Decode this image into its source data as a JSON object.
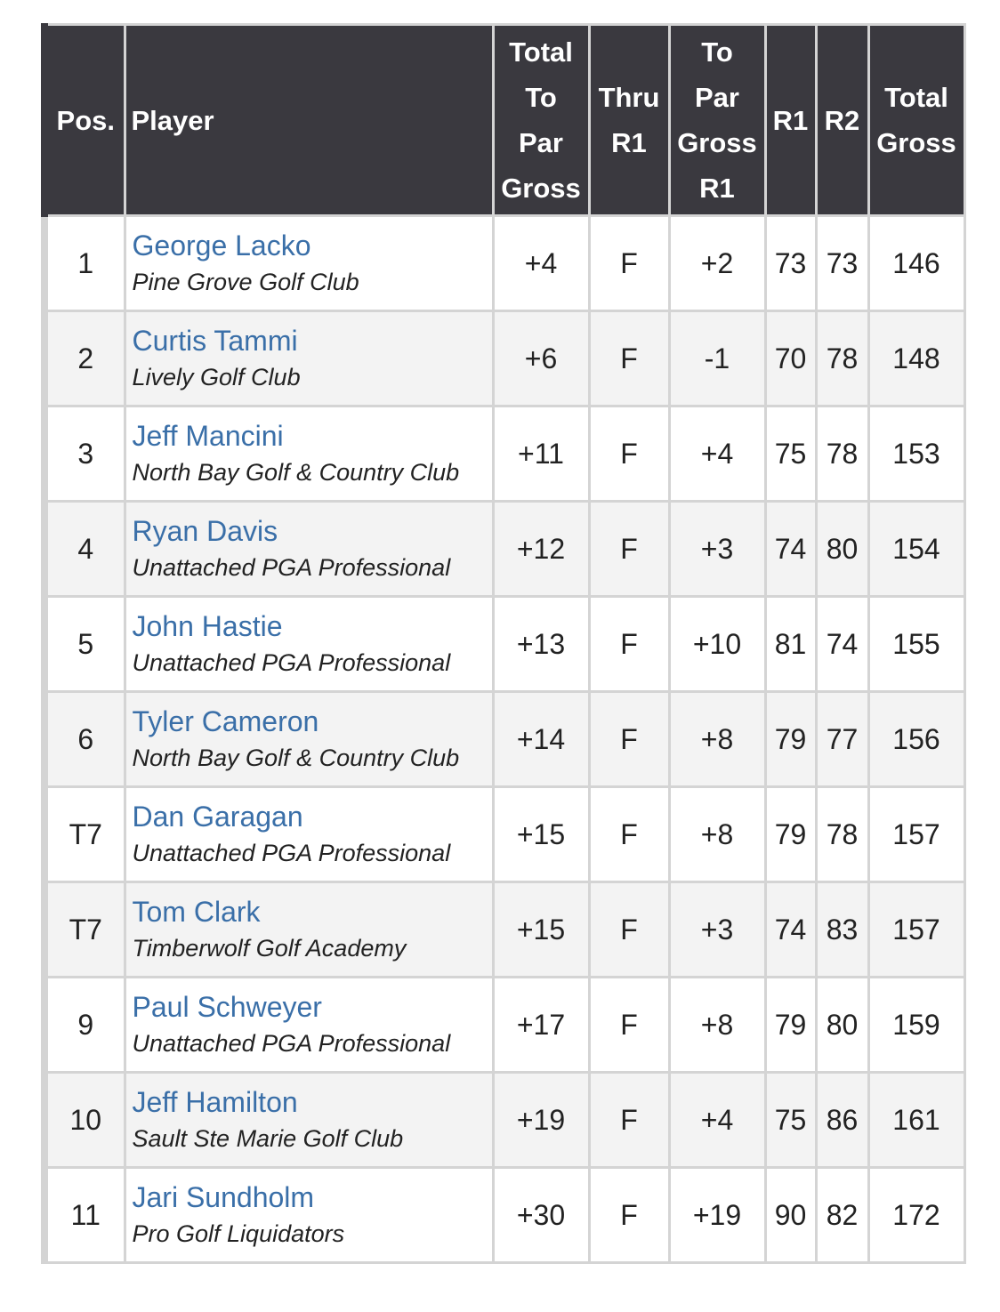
{
  "columns": {
    "pos": "Pos.",
    "player": "Player",
    "total_to_par": [
      "Total",
      "To",
      "Par",
      "Gross"
    ],
    "thru": [
      "Thru",
      "R1"
    ],
    "to_par_r1": [
      "To",
      "Par",
      "Gross",
      "R1"
    ],
    "r1": "R1",
    "r2": "R2",
    "total_gross": [
      "Total",
      "Gross"
    ]
  },
  "rows": [
    {
      "pos": "1",
      "name": "George Lacko",
      "club": "Pine Grove Golf Club",
      "total_to_par": "+4",
      "thru": "F",
      "to_par_r1": "+2",
      "r1": "73",
      "r2": "73",
      "total": "146"
    },
    {
      "pos": "2",
      "name": "Curtis Tammi",
      "club": "Lively Golf Club",
      "total_to_par": "+6",
      "thru": "F",
      "to_par_r1": "-1",
      "r1": "70",
      "r2": "78",
      "total": "148"
    },
    {
      "pos": "3",
      "name": "Jeff Mancini",
      "club": "North Bay Golf & Country Club",
      "total_to_par": "+11",
      "thru": "F",
      "to_par_r1": "+4",
      "r1": "75",
      "r2": "78",
      "total": "153"
    },
    {
      "pos": "4",
      "name": "Ryan Davis",
      "club": "Unattached PGA Professional",
      "total_to_par": "+12",
      "thru": "F",
      "to_par_r1": "+3",
      "r1": "74",
      "r2": "80",
      "total": "154"
    },
    {
      "pos": "5",
      "name": "John Hastie",
      "club": "Unattached PGA Professional",
      "total_to_par": "+13",
      "thru": "F",
      "to_par_r1": "+10",
      "r1": "81",
      "r2": "74",
      "total": "155"
    },
    {
      "pos": "6",
      "name": "Tyler Cameron",
      "club": "North Bay Golf & Country Club",
      "total_to_par": "+14",
      "thru": "F",
      "to_par_r1": "+8",
      "r1": "79",
      "r2": "77",
      "total": "156"
    },
    {
      "pos": "T7",
      "name": "Dan Garagan",
      "club": "Unattached PGA Professional",
      "total_to_par": "+15",
      "thru": "F",
      "to_par_r1": "+8",
      "r1": "79",
      "r2": "78",
      "total": "157"
    },
    {
      "pos": "T7",
      "name": "Tom Clark",
      "club": "Timberwolf Golf Academy",
      "total_to_par": "+15",
      "thru": "F",
      "to_par_r1": "+3",
      "r1": "74",
      "r2": "83",
      "total": "157"
    },
    {
      "pos": "9",
      "name": "Paul Schweyer",
      "club": "Unattached PGA Professional",
      "total_to_par": "+17",
      "thru": "F",
      "to_par_r1": "+8",
      "r1": "79",
      "r2": "80",
      "total": "159"
    },
    {
      "pos": "10",
      "name": "Jeff Hamilton",
      "club": "Sault Ste Marie Golf Club",
      "total_to_par": "+19",
      "thru": "F",
      "to_par_r1": "+4",
      "r1": "75",
      "r2": "86",
      "total": "161"
    },
    {
      "pos": "11",
      "name": "Jari Sundholm",
      "club": "Pro Golf Liquidators",
      "total_to_par": "+30",
      "thru": "F",
      "to_par_r1": "+19",
      "r1": "90",
      "r2": "82",
      "total": "172"
    }
  ],
  "colors": {
    "header_bg": "#3a393f",
    "header_text": "#ffffff",
    "link": "#3a6fa8",
    "border": "#d4d4d4",
    "row_shade": "#f3f3f3"
  }
}
